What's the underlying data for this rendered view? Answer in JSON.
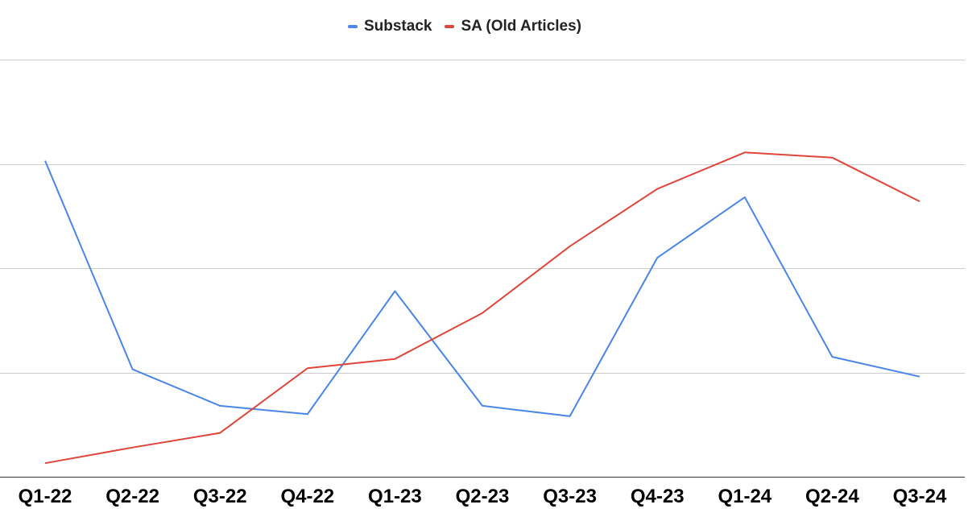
{
  "chart_data": {
    "type": "line",
    "title": "",
    "xlabel": "",
    "ylabel": "",
    "categories": [
      "Q1-22",
      "Q2-22",
      "Q3-22",
      "Q4-22",
      "Q1-23",
      "Q2-23",
      "Q3-23",
      "Q4-23",
      "Q1-24",
      "Q2-24",
      "Q3-24"
    ],
    "series": [
      {
        "name": "Substack",
        "color": "#4a86e8",
        "values": [
          3.03,
          1.03,
          0.68,
          0.6,
          1.78,
          0.68,
          0.58,
          2.1,
          2.68,
          1.15,
          0.96
        ]
      },
      {
        "name": "SA (Old Articles)",
        "color": "#e0453a",
        "values": [
          0.13,
          0.28,
          0.42,
          1.04,
          1.13,
          1.57,
          2.21,
          2.76,
          3.11,
          3.06,
          2.64
        ]
      }
    ],
    "ylim": [
      0,
      4
    ],
    "grid": true,
    "legend_position": "top-center",
    "y_tick_labels_shown": false
  }
}
